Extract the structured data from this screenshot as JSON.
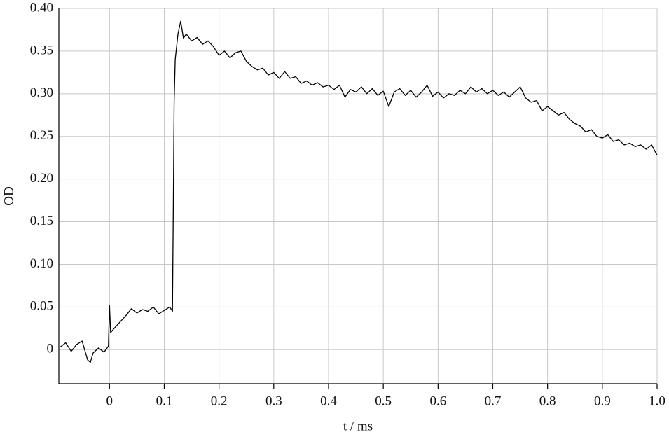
{
  "chart_data": {
    "type": "line",
    "xlabel": "t / ms",
    "ylabel": "OD",
    "xlim": [
      -0.0925,
      1.0
    ],
    "ylim": [
      -0.04,
      0.4
    ],
    "xticks": [
      0,
      0.1,
      0.2,
      0.3,
      0.4,
      0.5,
      0.6,
      0.7,
      0.8,
      0.9,
      {
        "value": 1.0,
        "label": "1.0"
      }
    ],
    "yticks": [
      0,
      0.05,
      {
        "value": 0.1,
        "label": "0.10"
      },
      0.15,
      {
        "value": 0.2,
        "label": "0.20"
      },
      0.25,
      {
        "value": 0.3,
        "label": "0.30"
      },
      0.35,
      {
        "value": 0.4,
        "label": "0.40"
      }
    ],
    "grid": true,
    "x": [
      -0.09,
      -0.08,
      -0.07,
      -0.06,
      -0.05,
      -0.04,
      -0.035,
      -0.03,
      -0.02,
      -0.01,
      -0.002,
      0,
      0.002,
      0.01,
      0.02,
      0.03,
      0.04,
      0.05,
      0.06,
      0.07,
      0.08,
      0.09,
      0.1,
      0.11,
      0.115,
      0.118,
      0.12,
      0.125,
      0.13,
      0.135,
      0.14,
      0.15,
      0.16,
      0.17,
      0.18,
      0.19,
      0.2,
      0.21,
      0.22,
      0.23,
      0.24,
      0.25,
      0.26,
      0.27,
      0.28,
      0.29,
      0.3,
      0.31,
      0.32,
      0.33,
      0.34,
      0.35,
      0.36,
      0.37,
      0.38,
      0.39,
      0.4,
      0.41,
      0.42,
      0.43,
      0.44,
      0.45,
      0.46,
      0.47,
      0.48,
      0.49,
      0.5,
      0.51,
      0.52,
      0.53,
      0.54,
      0.55,
      0.56,
      0.57,
      0.58,
      0.59,
      0.6,
      0.61,
      0.62,
      0.63,
      0.64,
      0.65,
      0.66,
      0.67,
      0.68,
      0.69,
      0.7,
      0.71,
      0.72,
      0.73,
      0.74,
      0.75,
      0.76,
      0.77,
      0.78,
      0.79,
      0.8,
      0.81,
      0.82,
      0.83,
      0.84,
      0.85,
      0.86,
      0.87,
      0.88,
      0.89,
      0.9,
      0.91,
      0.92,
      0.93,
      0.94,
      0.95,
      0.96,
      0.97,
      0.98,
      0.99,
      1.0
    ],
    "series": [
      {
        "color": "#000000",
        "values": [
          0.003,
          0.008,
          -0.002,
          0.006,
          0.01,
          -0.012,
          -0.015,
          -0.004,
          0.002,
          -0.003,
          0.004,
          0.052,
          0.02,
          0.026,
          0.033,
          0.04,
          0.048,
          0.043,
          0.047,
          0.045,
          0.05,
          0.042,
          0.046,
          0.05,
          0.045,
          0.29,
          0.34,
          0.37,
          0.385,
          0.365,
          0.37,
          0.362,
          0.366,
          0.358,
          0.362,
          0.355,
          0.345,
          0.35,
          0.342,
          0.348,
          0.35,
          0.338,
          0.332,
          0.328,
          0.33,
          0.322,
          0.325,
          0.318,
          0.326,
          0.318,
          0.32,
          0.312,
          0.315,
          0.31,
          0.313,
          0.308,
          0.31,
          0.305,
          0.31,
          0.296,
          0.305,
          0.302,
          0.308,
          0.3,
          0.306,
          0.298,
          0.303,
          0.285,
          0.302,
          0.306,
          0.298,
          0.304,
          0.296,
          0.302,
          0.31,
          0.297,
          0.302,
          0.295,
          0.3,
          0.298,
          0.304,
          0.3,
          0.308,
          0.302,
          0.306,
          0.3,
          0.304,
          0.298,
          0.302,
          0.296,
          0.302,
          0.308,
          0.295,
          0.29,
          0.292,
          0.28,
          0.285,
          0.28,
          0.275,
          0.278,
          0.27,
          0.265,
          0.262,
          0.255,
          0.258,
          0.25,
          0.248,
          0.252,
          0.244,
          0.246,
          0.24,
          0.242,
          0.238,
          0.24,
          0.235,
          0.24,
          0.228
        ]
      }
    ]
  }
}
